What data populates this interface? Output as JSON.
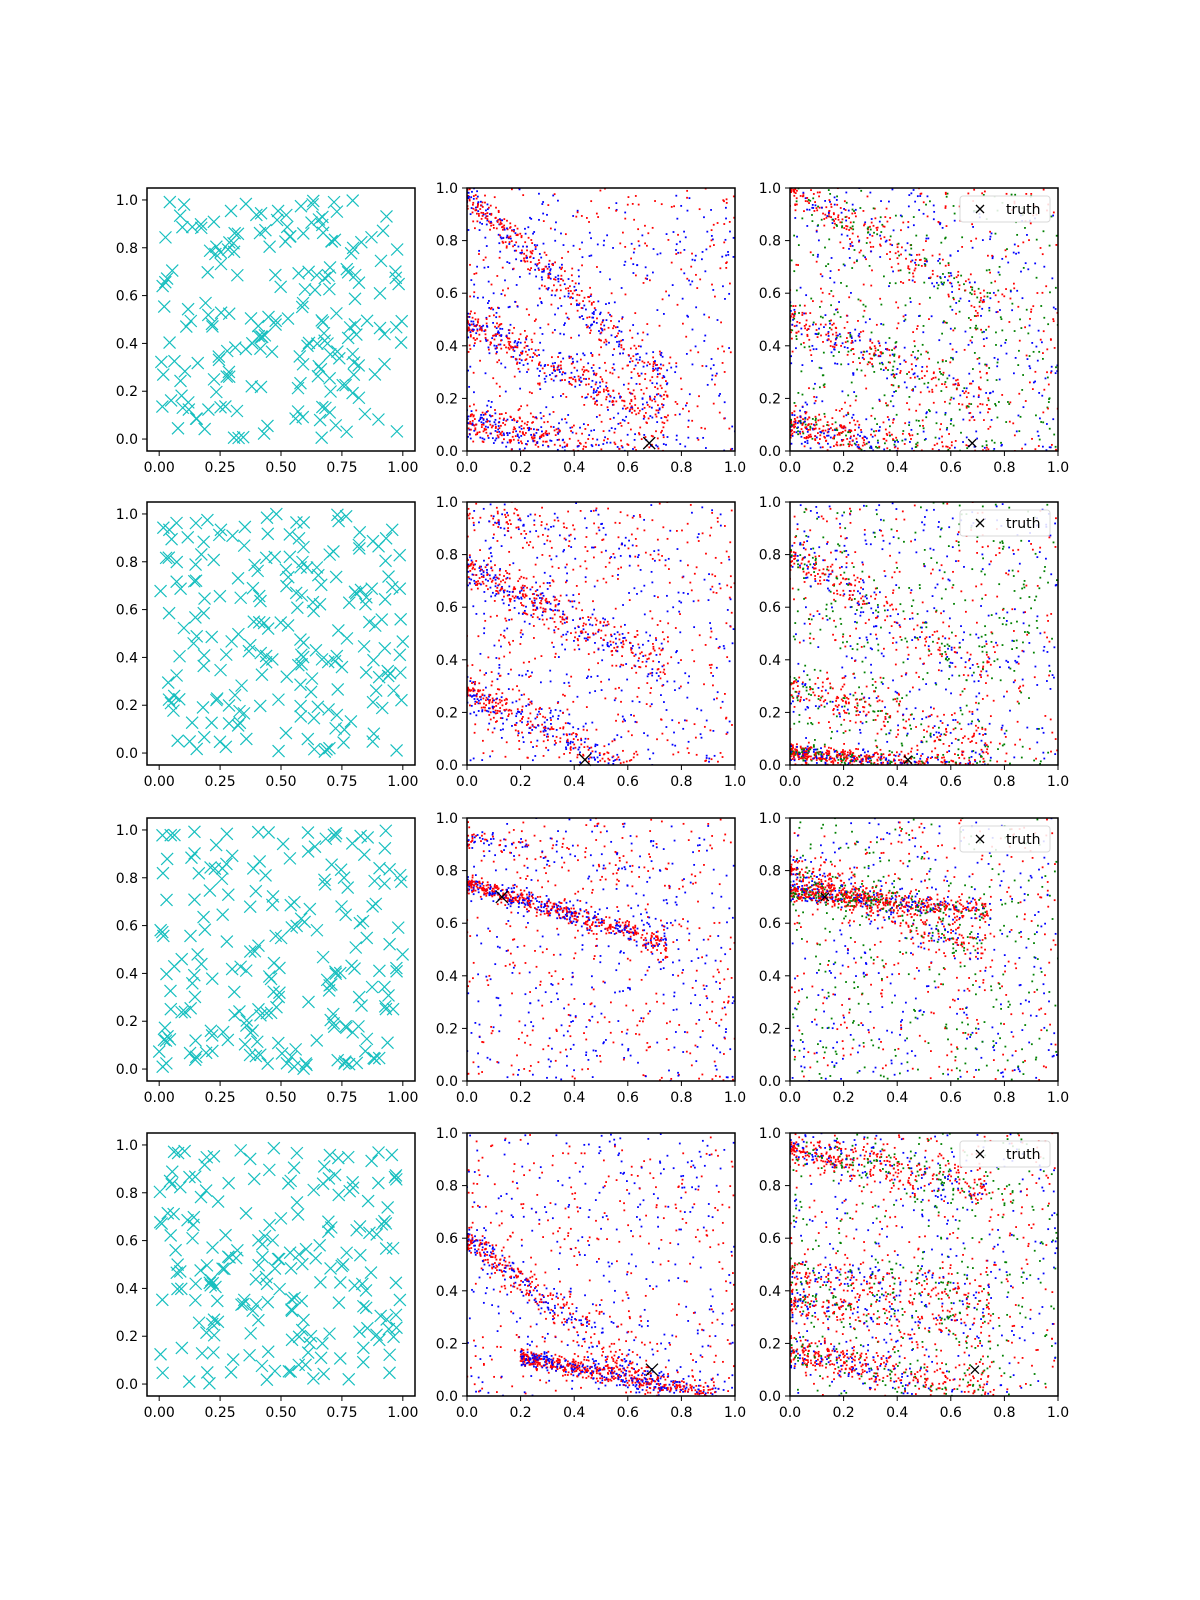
{
  "figure": {
    "layout": "4 rows x 3 columns of scatter plots",
    "legend_label": "truth"
  },
  "colors": {
    "uniform_marker": "#17bfbf",
    "series_red": "#ff0000",
    "series_blue": "#0000ff",
    "series_green": "#008000",
    "truth_marker": "#000000"
  },
  "chart_data": [
    {
      "row": 0,
      "col": 0,
      "type": "scatter",
      "marker": "x",
      "xlim": [
        -0.05,
        1.05
      ],
      "ylim": [
        -0.05,
        1.05
      ],
      "xticks": [
        "0.00",
        "0.25",
        "0.50",
        "0.75",
        "1.00"
      ],
      "yticks": [
        "0.0",
        "0.2",
        "0.4",
        "0.6",
        "0.8",
        "1.0"
      ],
      "description": "~200 uniformly random cyan x markers"
    },
    {
      "row": 0,
      "col": 1,
      "type": "scatter",
      "xlim": [
        0,
        1
      ],
      "ylim": [
        0,
        1
      ],
      "xticks": [
        "0.0",
        "0.2",
        "0.4",
        "0.6",
        "0.8",
        "1.0"
      ],
      "yticks": [
        "0.0",
        "0.2",
        "0.4",
        "0.6",
        "0.8",
        "1.0"
      ],
      "truth": [
        0.68,
        0.03
      ],
      "bands": [
        {
          "x0": 0.0,
          "y0": 0.98,
          "slope": -1.0,
          "density": "high"
        },
        {
          "x0": 0.0,
          "y0": 0.48,
          "slope": -0.5,
          "density": "high"
        },
        {
          "x0": 0.0,
          "y0": 0.12,
          "slope": -0.25,
          "density": "high"
        }
      ],
      "series": [
        {
          "name": "red"
        },
        {
          "name": "blue"
        }
      ]
    },
    {
      "row": 0,
      "col": 2,
      "type": "scatter",
      "xlim": [
        0,
        1
      ],
      "ylim": [
        0,
        1
      ],
      "xticks": [
        "0.0",
        "0.2",
        "0.4",
        "0.6",
        "0.8",
        "1.0"
      ],
      "yticks": [
        "0.0",
        "0.2",
        "0.4",
        "0.6",
        "0.8",
        "1.0"
      ],
      "truth": [
        0.68,
        0.03
      ],
      "legend": "truth",
      "bands": [
        {
          "x0": 0.0,
          "y0": 1.0,
          "slope": -0.6,
          "density": "medium"
        },
        {
          "x0": 0.0,
          "y0": 0.5,
          "slope": -0.4,
          "density": "medium"
        },
        {
          "x0": 0.0,
          "y0": 0.1,
          "slope": -0.2,
          "density": "high"
        }
      ],
      "series": [
        {
          "name": "red"
        },
        {
          "name": "blue"
        },
        {
          "name": "green"
        }
      ]
    },
    {
      "row": 1,
      "col": 0,
      "type": "scatter",
      "marker": "x",
      "xlim": [
        -0.05,
        1.05
      ],
      "ylim": [
        -0.05,
        1.05
      ],
      "xticks": [
        "0.00",
        "0.25",
        "0.50",
        "0.75",
        "1.00"
      ],
      "yticks": [
        "0.0",
        "0.2",
        "0.4",
        "0.6",
        "0.8",
        "1.0"
      ],
      "description": "~200 uniformly random cyan x markers"
    },
    {
      "row": 1,
      "col": 1,
      "type": "scatter",
      "xlim": [
        0,
        1
      ],
      "ylim": [
        0,
        1
      ],
      "xticks": [
        "0.0",
        "0.2",
        "0.4",
        "0.6",
        "0.8",
        "1.0"
      ],
      "yticks": [
        "0.0",
        "0.2",
        "0.4",
        "0.6",
        "0.8",
        "1.0"
      ],
      "truth": [
        0.44,
        0.02
      ],
      "bands": [
        {
          "x0": 0.0,
          "y0": 0.75,
          "slope": -0.5,
          "density": "high"
        },
        {
          "x0": 0.0,
          "y0": 0.28,
          "slope": -0.5,
          "density": "high"
        },
        {
          "x0": 0.0,
          "y0": 0.95,
          "slope": -0.2,
          "density": "low"
        }
      ],
      "series": [
        {
          "name": "red"
        },
        {
          "name": "blue"
        }
      ]
    },
    {
      "row": 1,
      "col": 2,
      "type": "scatter",
      "xlim": [
        0,
        1
      ],
      "ylim": [
        0,
        1
      ],
      "xticks": [
        "0.0",
        "0.2",
        "0.4",
        "0.6",
        "0.8",
        "1.0"
      ],
      "yticks": [
        "0.0",
        "0.2",
        "0.4",
        "0.6",
        "0.8",
        "1.0"
      ],
      "truth": [
        0.44,
        0.02
      ],
      "legend": "truth",
      "bands": [
        {
          "x0": 0.0,
          "y0": 0.8,
          "slope": -0.6,
          "density": "medium"
        },
        {
          "x0": 0.0,
          "y0": 0.05,
          "slope": -0.1,
          "density": "very high"
        },
        {
          "x0": 0.0,
          "y0": 0.3,
          "slope": -0.3,
          "density": "medium"
        }
      ],
      "series": [
        {
          "name": "red"
        },
        {
          "name": "blue"
        },
        {
          "name": "green"
        }
      ]
    },
    {
      "row": 2,
      "col": 0,
      "type": "scatter",
      "marker": "x",
      "xlim": [
        -0.05,
        1.05
      ],
      "ylim": [
        -0.05,
        1.05
      ],
      "xticks": [
        "0.00",
        "0.25",
        "0.50",
        "0.75",
        "1.00"
      ],
      "yticks": [
        "0.0",
        "0.2",
        "0.4",
        "0.6",
        "0.8",
        "1.0"
      ],
      "description": "~200 uniformly random cyan x markers"
    },
    {
      "row": 2,
      "col": 1,
      "type": "scatter",
      "xlim": [
        0,
        1
      ],
      "ylim": [
        0,
        1
      ],
      "xticks": [
        "0.0",
        "0.2",
        "0.4",
        "0.6",
        "0.8",
        "1.0"
      ],
      "yticks": [
        "0.0",
        "0.2",
        "0.4",
        "0.6",
        "0.8",
        "1.0"
      ],
      "truth": [
        0.13,
        0.7
      ],
      "bands": [
        {
          "x0": 0.0,
          "y0": 0.75,
          "slope": -0.3,
          "density": "very high"
        },
        {
          "x0": 0.0,
          "y0": 0.92,
          "slope": -0.2,
          "density": "low"
        }
      ],
      "series": [
        {
          "name": "red"
        },
        {
          "name": "blue"
        }
      ]
    },
    {
      "row": 2,
      "col": 2,
      "type": "scatter",
      "xlim": [
        0,
        1
      ],
      "ylim": [
        0,
        1
      ],
      "xticks": [
        "0.0",
        "0.2",
        "0.4",
        "0.6",
        "0.8",
        "1.0"
      ],
      "yticks": [
        "0.0",
        "0.2",
        "0.4",
        "0.6",
        "0.8",
        "1.0"
      ],
      "truth": [
        0.13,
        0.7
      ],
      "legend": "truth",
      "bands": [
        {
          "x0": 0.0,
          "y0": 0.72,
          "slope": -0.1,
          "density": "very high"
        },
        {
          "x0": 0.0,
          "y0": 0.8,
          "slope": -0.4,
          "density": "high"
        }
      ],
      "series": [
        {
          "name": "red"
        },
        {
          "name": "blue"
        },
        {
          "name": "green"
        }
      ]
    },
    {
      "row": 3,
      "col": 0,
      "type": "scatter",
      "marker": "x",
      "xlim": [
        -0.05,
        1.05
      ],
      "ylim": [
        -0.05,
        1.05
      ],
      "xticks": [
        "0.00",
        "0.25",
        "0.50",
        "0.75",
        "1.00"
      ],
      "yticks": [
        "0.0",
        "0.2",
        "0.4",
        "0.6",
        "0.8",
        "1.0"
      ],
      "description": "~200 uniformly random cyan x markers"
    },
    {
      "row": 3,
      "col": 1,
      "type": "scatter",
      "xlim": [
        0,
        1
      ],
      "ylim": [
        0,
        1
      ],
      "xticks": [
        "0.0",
        "0.2",
        "0.4",
        "0.6",
        "0.8",
        "1.0"
      ],
      "yticks": [
        "0.0",
        "0.2",
        "0.4",
        "0.6",
        "0.8",
        "1.0"
      ],
      "truth": [
        0.69,
        0.1
      ],
      "bands": [
        {
          "x0": 0.0,
          "y0": 0.6,
          "slope": -0.8,
          "density": "high"
        },
        {
          "x0": 0.2,
          "y0": 0.15,
          "slope": -0.2,
          "density": "very high"
        }
      ],
      "series": [
        {
          "name": "red"
        },
        {
          "name": "blue"
        }
      ]
    },
    {
      "row": 3,
      "col": 2,
      "type": "scatter",
      "xlim": [
        0,
        1
      ],
      "ylim": [
        0,
        1
      ],
      "xticks": [
        "0.0",
        "0.2",
        "0.4",
        "0.6",
        "0.8",
        "1.0"
      ],
      "yticks": [
        "0.0",
        "0.2",
        "0.4",
        "0.6",
        "0.8",
        "1.0"
      ],
      "truth": [
        0.69,
        0.1
      ],
      "legend": "truth",
      "bands": [
        {
          "x0": 0.0,
          "y0": 0.94,
          "slope": -0.2,
          "density": "high"
        },
        {
          "x0": 0.0,
          "y0": 0.47,
          "slope": -0.1,
          "density": "medium"
        },
        {
          "x0": 0.0,
          "y0": 0.35,
          "slope": -0.1,
          "density": "medium"
        },
        {
          "x0": 0.0,
          "y0": 0.17,
          "slope": -0.2,
          "density": "high"
        }
      ],
      "series": [
        {
          "name": "red"
        },
        {
          "name": "blue"
        },
        {
          "name": "green"
        }
      ]
    }
  ]
}
